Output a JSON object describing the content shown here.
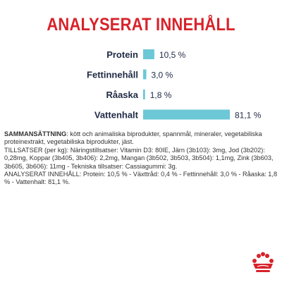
{
  "title": "ANALYSERAT INNEHÅLL",
  "chart_data": {
    "type": "bar",
    "orientation": "horizontal",
    "categories": [
      "Protein",
      "Fettinnehåll",
      "Råaska",
      "Vattenhalt"
    ],
    "values": [
      10.5,
      3.0,
      1.8,
      81.1
    ],
    "value_labels": [
      "10,5 %",
      "3,0 %",
      "1,8 %",
      "81,1 %"
    ],
    "unit": "%",
    "xlim": [
      0,
      81.1
    ],
    "bar_color": "#6cc7d6",
    "grid": false
  },
  "composition": {
    "heading": "SAMMANSÄTTNING",
    "text": ": kött och animaliska biprodukter, spannmål, mineraler, vegetabiliska proteinextrakt, vegetabiliska biprodukter, jäst.",
    "additives": "TILLSATSER (per kg): Näringstillsatser: Vitamin D3: 80IE, Järn (3b103): 3mg, Jod (3b202): 0,28mg, Koppar (3b405, 3b406): 2,2mg, Mangan (3b502, 3b503, 3b504): 1,1mg, Zink (3b603, 3b605, 3b606): 11mg - Tekniska tillsatser: Cassiagummi: 3g.",
    "analysis": "ANALYSERAT INNEHÅLL: Protein: 10,5 % - Växttråd: 0,4 % - Fettinnehåll: 3,0 % - Råaska: 1,8 % - Vattenhalt: 81,1 %."
  },
  "colors": {
    "title_red": "#d8222a",
    "label_navy": "#1f2a44",
    "logo_red": "#d8222a"
  },
  "logo": {
    "icon": "royal-canin-crown-icon"
  }
}
